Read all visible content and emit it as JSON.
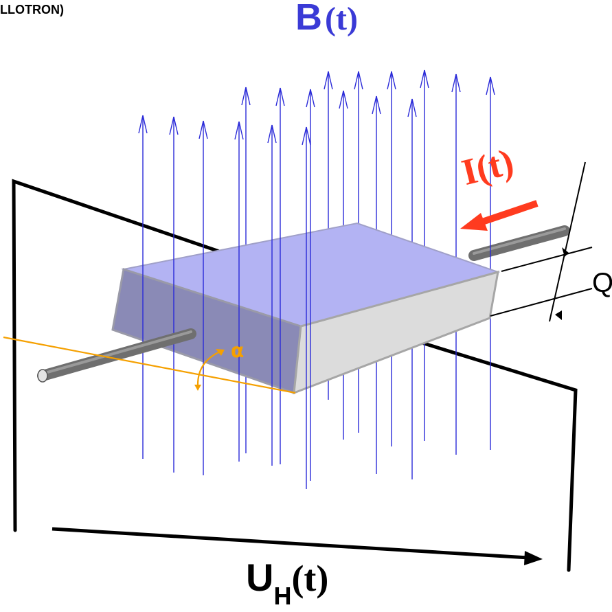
{
  "labels": {
    "header_fragment": "LLOTRON)",
    "field_symbol": "B",
    "field_argument": "(t)",
    "current": "I(t)",
    "thickness": "Q",
    "angle": "α",
    "hall_voltage_symbol": "U",
    "hall_voltage_subscript": "H",
    "hall_voltage_argument": "(t)"
  },
  "colors": {
    "field_lines": "#2a2ad8",
    "field_label": "#3a3ad6",
    "current": "#ff3b1f",
    "angle_marker": "#f5a000",
    "plate_top": "#b3b3f3",
    "plate_front": "#8a8ab6",
    "plate_side": "#dcdcdc",
    "rod": "#6f6f6f",
    "wire": "#000000"
  }
}
